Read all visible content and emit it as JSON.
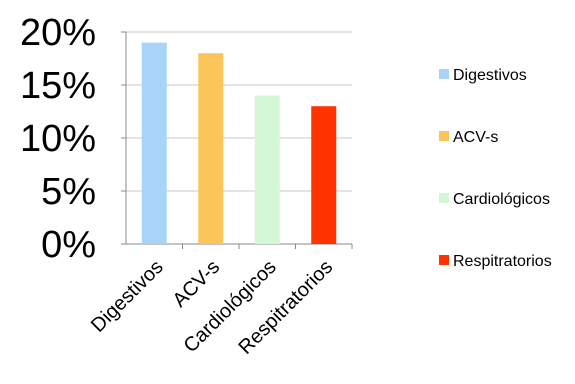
{
  "chart_data": {
    "type": "bar",
    "categories": [
      "Digestivos",
      "ACV-s",
      "Cardiológicos",
      "Respitratorios"
    ],
    "values": [
      19,
      18,
      14,
      13
    ],
    "unit": "%",
    "ylim": [
      0,
      20
    ],
    "yticks": [
      "0%",
      "5%",
      "10%",
      "15%",
      "20%"
    ],
    "grid": true,
    "legend_position": "right",
    "colors": [
      "#a9d3f7",
      "#fbc55a",
      "#d3f7d5",
      "#ff3300"
    ],
    "legend": [
      "Digestivos",
      "ACV-s",
      "Cardiológicos",
      "Respitratorios"
    ]
  }
}
